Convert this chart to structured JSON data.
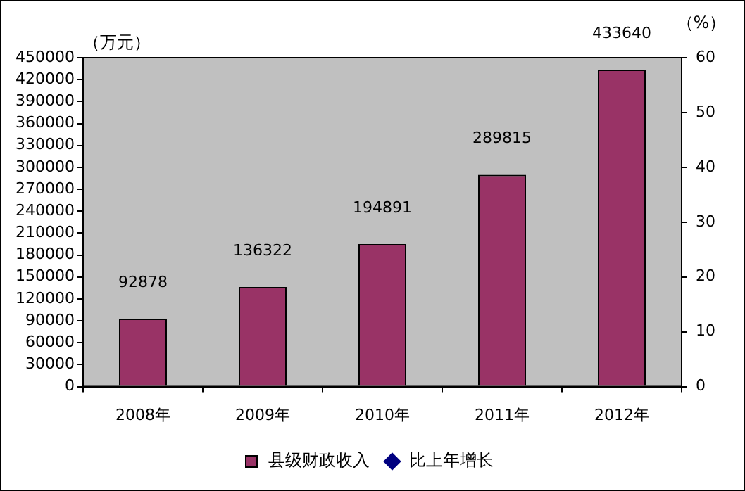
{
  "chart_data": {
    "type": "bar",
    "categories": [
      "2008年",
      "2009年",
      "2010年",
      "2011年",
      "2012年"
    ],
    "series": [
      {
        "name": "县级财政收入",
        "color": "#993366",
        "values": [
          92878,
          136322,
          194891,
          289815,
          433640
        ]
      },
      {
        "name": "比上年增长",
        "type": "line",
        "color": "#000080",
        "marker": "diamond",
        "values": [
          null,
          null,
          null,
          null,
          null
        ]
      }
    ],
    "ylabel": "（万元）",
    "y2label": "（%）",
    "ylim": [
      0,
      450000
    ],
    "yticks": [
      0,
      30000,
      60000,
      90000,
      120000,
      150000,
      180000,
      210000,
      240000,
      270000,
      300000,
      330000,
      360000,
      390000,
      420000,
      450000
    ],
    "y2lim": [
      0,
      60
    ],
    "y2ticks": [
      0,
      10,
      20,
      30,
      40,
      50,
      60
    ],
    "data_labels": true,
    "legend": "bottom"
  }
}
